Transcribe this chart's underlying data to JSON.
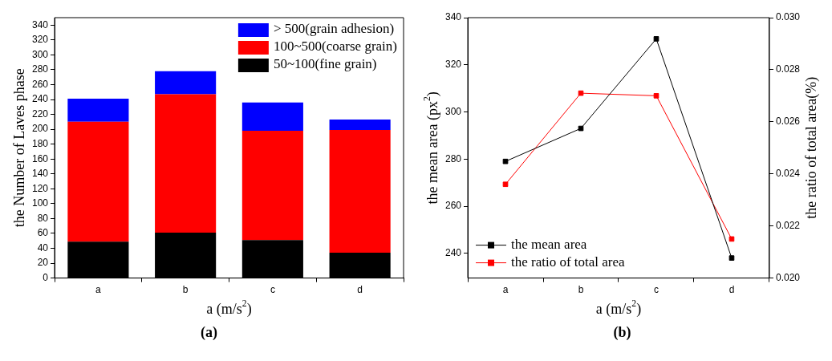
{
  "chart_data": [
    {
      "type": "bar",
      "stacked": true,
      "categories": [
        "a",
        "b",
        "c",
        "d"
      ],
      "series": [
        {
          "name": "50~100(fine grain)",
          "color": "#000000",
          "values": [
            49,
            61,
            51,
            34
          ]
        },
        {
          "name": "100~500(coarse grain)",
          "color": "#ff0000",
          "values": [
            161,
            186,
            147,
            165
          ]
        },
        {
          "name": "> 500(grain adhesion)",
          "color": "#0000ff",
          "values": [
            31,
            31,
            38,
            14
          ]
        }
      ],
      "ylim": [
        0,
        350
      ],
      "yticks": [
        0,
        20,
        40,
        60,
        80,
        100,
        120,
        140,
        160,
        180,
        200,
        220,
        240,
        260,
        280,
        300,
        320,
        340
      ],
      "xlabel": "a (m/s$^{2}$)",
      "ylabel": "the Number of Laves phase",
      "legend": "top right",
      "grid": false,
      "annotations": [
        "(a)"
      ]
    },
    {
      "type": "line",
      "categories": [
        "a",
        "b",
        "c",
        "d"
      ],
      "marker": "square",
      "series": [
        {
          "name": "the mean area",
          "color": "#000000",
          "values": [
            279,
            293,
            331,
            238
          ]
        },
        {
          "name": "the ratio of total area",
          "color": "#ff0000",
          "axis": "y2",
          "values": [
            0.0236,
            0.0271,
            0.027,
            0.0215
          ]
        }
      ],
      "ylim": [
        229.5,
        340
      ],
      "yticks": [
        240,
        260,
        280,
        300,
        320,
        340
      ],
      "y2lim": [
        0.02,
        0.03
      ],
      "y2ticks": [
        {
          "value": 0.02,
          "label": "0.020"
        },
        0.022,
        0.024,
        0.026,
        0.028,
        {
          "value": 0.03,
          "label": "0.030"
        }
      ],
      "xlabel": "a (m/s$^{2}$)",
      "ylabel": "the mean area (px$^{2}$)",
      "y2label": "the ratio of total area(%)",
      "legend": "bottom left",
      "grid": false,
      "annotations": [
        "(b)"
      ]
    }
  ]
}
